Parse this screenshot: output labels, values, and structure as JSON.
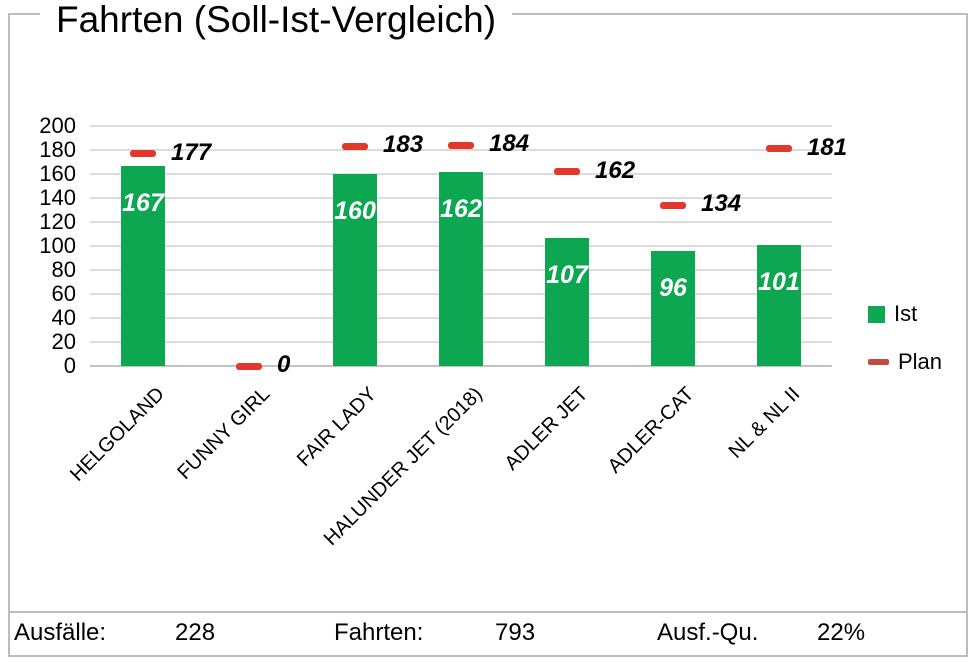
{
  "title": "Fahrten (Soll-Ist-Vergleich)",
  "chart_data": {
    "type": "bar",
    "title": "Fahrten (Soll-Ist-Vergleich)",
    "categories": [
      "HELGOLAND",
      "FUNNY GIRL",
      "FAIR LADY",
      "HALUNDER JET (2018)",
      "ADLER JET",
      "ADLER-CAT",
      "NL & NL II"
    ],
    "series": [
      {
        "name": "Ist",
        "render": "bar",
        "color": "#0ca750",
        "values": [
          167,
          0,
          160,
          162,
          107,
          96,
          101
        ],
        "labels": [
          "167",
          null,
          "160",
          "162",
          "107",
          "96",
          "101"
        ]
      },
      {
        "name": "Plan",
        "render": "dash-marker",
        "color": "#e2372b",
        "values": [
          177,
          0,
          183,
          184,
          162,
          134,
          181
        ],
        "labels": [
          "177",
          "0",
          "183",
          "184",
          "162",
          "134",
          "181"
        ]
      }
    ],
    "xlabel": "",
    "ylabel": "",
    "ylim": [
      0,
      200
    ],
    "ytick_step": 20,
    "yticks": [
      "0",
      "20",
      "40",
      "60",
      "80",
      "100",
      "120",
      "140",
      "160",
      "180",
      "200"
    ],
    "grid": "horizontal",
    "legend_position": "right",
    "legend": [
      {
        "label": "Ist",
        "swatch": "square",
        "color": "#0ca750"
      },
      {
        "label": "Plan",
        "swatch": "dash",
        "color": "#bf4b42"
      }
    ]
  },
  "summary_row": {
    "items": [
      {
        "label": "Ausfälle:",
        "value": "228"
      },
      {
        "label": "Fahrten:",
        "value": "793"
      },
      {
        "label": "Ausf.-Qu.",
        "value": "22%"
      }
    ]
  },
  "colors": {
    "bar": "#0ca750",
    "plan_marker": "#e2372b",
    "legend_dash": "#bf4b42",
    "gridline": "#dcdcdc",
    "frame_border": "#bdbdbd",
    "bar_label_text": "#ffffff",
    "text": "#000000"
  }
}
